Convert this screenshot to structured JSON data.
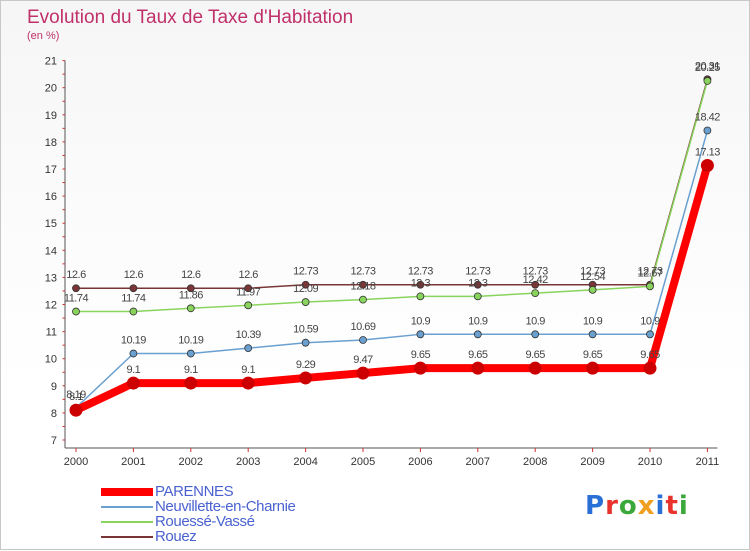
{
  "title": "Evolution du Taux de Taxe d'Habitation",
  "unit": "(en %)",
  "logo": {
    "text": "Proxiti",
    "colors": [
      "#2a6fd6",
      "#e8322b",
      "#3aa83a",
      "#f0a020",
      "#2a6fd6",
      "#e8322b",
      "#3aa83a"
    ]
  },
  "chart_data": {
    "type": "line",
    "title": "Evolution du Taux de Taxe d'Habitation",
    "ylabel": "(en %)",
    "xlabel": "",
    "x": [
      "2000",
      "2001",
      "2002",
      "2003",
      "2004",
      "2005",
      "2006",
      "2007",
      "2008",
      "2009",
      "2010",
      "2011"
    ],
    "yticks": [
      "7",
      "8",
      "9",
      "10",
      "11",
      "12",
      "13",
      "14",
      "15",
      "16",
      "17",
      "18",
      "19",
      "20",
      "21"
    ],
    "ylim": [
      7,
      21
    ],
    "legend_position": "bottom-left",
    "grid": false,
    "series": [
      {
        "name": "Rouez",
        "color": "#7a3636",
        "width": 1.5,
        "marker": 3.5,
        "values": [
          12.6,
          12.6,
          12.6,
          12.6,
          12.73,
          12.73,
          12.73,
          12.73,
          12.73,
          12.73,
          12.73,
          20.31
        ],
        "labels": [
          "12.6",
          "12.6",
          "12.6",
          "12.6",
          "12.73",
          "12.73",
          "12.73",
          "12.73",
          "12.73",
          "12.73",
          "12.73",
          "20.31"
        ]
      },
      {
        "name": "Rouessé-Vassé",
        "color": "#88d45c",
        "width": 1.5,
        "marker": 3.5,
        "values": [
          11.74,
          11.74,
          11.86,
          11.97,
          12.09,
          12.18,
          12.3,
          12.3,
          12.42,
          12.54,
          12.67,
          20.25
        ],
        "labels": [
          "11.74",
          "11.74",
          "11.86",
          "11.97",
          "12.09",
          "12.18",
          "12.3",
          "12.3",
          "12.42",
          "12.54",
          "12.67",
          "20.25"
        ]
      },
      {
        "name": "Neuvillette-en-Charnie",
        "color": "#6aa0d0",
        "width": 1.5,
        "marker": 3.5,
        "values": [
          8.19,
          10.19,
          10.19,
          10.39,
          10.59,
          10.69,
          10.9,
          10.9,
          10.9,
          10.9,
          10.9,
          18.42
        ],
        "labels": [
          "8.19",
          "10.19",
          "10.19",
          "10.39",
          "10.59",
          "10.69",
          "10.9",
          "10.9",
          "10.9",
          "10.9",
          "10.9",
          "18.42"
        ]
      },
      {
        "name": "PARENNES",
        "color": "#ff0000",
        "width": 8,
        "marker": 6.5,
        "values": [
          8.1,
          9.1,
          9.1,
          9.1,
          9.29,
          9.47,
          9.65,
          9.65,
          9.65,
          9.65,
          9.65,
          17.13
        ],
        "labels": [
          "8.1",
          "9.1",
          "9.1",
          "9.1",
          "9.29",
          "9.47",
          "9.65",
          "9.65",
          "9.65",
          "9.65",
          "9.65",
          "17.13"
        ]
      }
    ]
  },
  "legend": [
    {
      "name": "PARENNES",
      "color": "#ff0000",
      "thickness": 8
    },
    {
      "name": "Neuvillette-en-Charnie",
      "color": "#6aa0d0",
      "thickness": 2
    },
    {
      "name": "Rouessé-Vassé",
      "color": "#88d45c",
      "thickness": 2
    },
    {
      "name": "Rouez",
      "color": "#7a3636",
      "thickness": 2
    }
  ]
}
